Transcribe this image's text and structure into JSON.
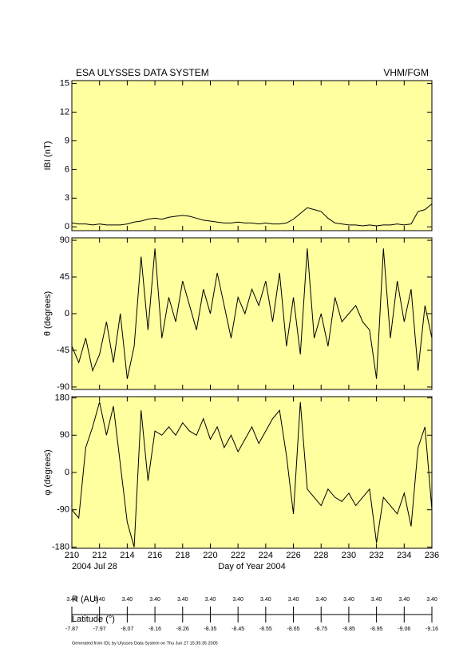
{
  "header": {
    "title": "ESA ULYSSES DATA SYSTEM",
    "instrument": "VHM/FGM"
  },
  "chart_data": [
    {
      "type": "line",
      "ylabel": "IBI (nT)",
      "color": "#000000",
      "background": "#ffffa0",
      "x": [
        210,
        210.5,
        211,
        211.5,
        212,
        212.5,
        213,
        213.5,
        214,
        214.5,
        215,
        215.5,
        216,
        216.5,
        217,
        217.5,
        218,
        218.5,
        219,
        219.5,
        220,
        220.5,
        221,
        221.5,
        222,
        222.5,
        223,
        223.5,
        224,
        224.5,
        225,
        225.5,
        226,
        226.5,
        227,
        227.5,
        228,
        228.5,
        229,
        229.5,
        230,
        230.5,
        231,
        231.5,
        232,
        232.5,
        233,
        233.5,
        234,
        234.5,
        235,
        235.5,
        236
      ],
      "values": [
        0.4,
        0.3,
        0.3,
        0.2,
        0.3,
        0.2,
        0.2,
        0.2,
        0.3,
        0.5,
        0.6,
        0.8,
        0.9,
        0.8,
        1.0,
        1.1,
        1.2,
        1.1,
        0.9,
        0.7,
        0.6,
        0.5,
        0.4,
        0.4,
        0.5,
        0.4,
        0.4,
        0.3,
        0.4,
        0.3,
        0.3,
        0.4,
        0.8,
        1.4,
        2.0,
        1.8,
        1.6,
        0.9,
        0.4,
        0.3,
        0.2,
        0.2,
        0.1,
        0.2,
        0.1,
        0.2,
        0.2,
        0.3,
        0.2,
        0.3,
        1.6,
        1.8,
        2.4
      ],
      "xlim": [
        210,
        236
      ],
      "xticks": [
        210,
        212,
        214,
        216,
        218,
        220,
        222,
        224,
        226,
        228,
        230,
        232,
        234,
        236
      ],
      "ylim": [
        -0.4,
        15.3
      ],
      "yticks": [
        0,
        3,
        6,
        9,
        12,
        15
      ]
    },
    {
      "type": "line",
      "ylabel": "θ (degrees)",
      "color": "#000000",
      "background": "#ffffa0",
      "x": [
        210,
        210.5,
        211,
        211.5,
        212,
        212.5,
        213,
        213.5,
        214,
        214.5,
        215,
        215.5,
        216,
        216.5,
        217,
        217.5,
        218,
        218.5,
        219,
        219.5,
        220,
        220.5,
        221,
        221.5,
        222,
        222.5,
        223,
        223.5,
        224,
        224.5,
        225,
        225.5,
        226,
        226.5,
        227,
        227.5,
        228,
        228.5,
        229,
        229.5,
        230,
        230.5,
        231,
        231.5,
        232,
        232.5,
        233,
        233.5,
        234,
        234.5,
        235,
        235.5,
        236
      ],
      "values": [
        -40,
        -60,
        -30,
        -70,
        -50,
        -10,
        -60,
        0,
        -80,
        -40,
        70,
        -20,
        80,
        -30,
        20,
        -10,
        40,
        10,
        -20,
        30,
        0,
        50,
        10,
        -30,
        20,
        0,
        30,
        10,
        40,
        -10,
        50,
        -40,
        20,
        -50,
        80,
        -30,
        0,
        -40,
        20,
        -10,
        0,
        10,
        -10,
        -20,
        -80,
        80,
        -30,
        40,
        -10,
        30,
        -70,
        10,
        -30
      ],
      "xlim": [
        210,
        236
      ],
      "xticks": [
        210,
        212,
        214,
        216,
        218,
        220,
        222,
        224,
        226,
        228,
        230,
        232,
        234,
        236
      ],
      "ylim": [
        -93,
        93
      ],
      "yticks": [
        -90,
        -45,
        0,
        45,
        90
      ]
    },
    {
      "type": "line",
      "ylabel": "φ (degrees)",
      "xlabel": "Day of Year 2004",
      "date_label": "2004 Jul 28",
      "color": "#000000",
      "background": "#ffffa0",
      "x": [
        210,
        210.5,
        211,
        211.5,
        212,
        212.5,
        213,
        213.5,
        214,
        214.5,
        215,
        215.5,
        216,
        216.5,
        217,
        217.5,
        218,
        218.5,
        219,
        219.5,
        220,
        220.5,
        221,
        221.5,
        222,
        222.5,
        223,
        223.5,
        224,
        224.5,
        225,
        225.5,
        226,
        226.5,
        227,
        227.5,
        228,
        228.5,
        229,
        229.5,
        230,
        230.5,
        231,
        231.5,
        232,
        232.5,
        233,
        233.5,
        234,
        234.5,
        235,
        235.5,
        236
      ],
      "values": [
        -90,
        -110,
        60,
        110,
        170,
        90,
        160,
        20,
        -120,
        -180,
        150,
        -20,
        100,
        90,
        110,
        90,
        120,
        100,
        90,
        130,
        80,
        110,
        60,
        90,
        50,
        80,
        110,
        70,
        100,
        130,
        150,
        40,
        -100,
        170,
        -40,
        -60,
        -80,
        -40,
        -60,
        -70,
        -50,
        -80,
        -60,
        -40,
        -170,
        -60,
        -80,
        -100,
        -50,
        -130,
        60,
        110,
        -90
      ],
      "xlim": [
        210,
        236
      ],
      "xticks": [
        210,
        212,
        214,
        216,
        218,
        220,
        222,
        224,
        226,
        228,
        230,
        232,
        234,
        236
      ],
      "ylim": [
        -183,
        183
      ],
      "yticks": [
        -180,
        -90,
        0,
        90,
        180
      ]
    }
  ],
  "ephemeris": {
    "r_label": "R (AU)",
    "lat_label": "Latitude (°)",
    "r_values": [
      "3.40",
      "3.40",
      "3.40",
      "3.40",
      "3.40",
      "3.40",
      "3.40",
      "3.40",
      "3.40",
      "3.40",
      "3.40",
      "3.40",
      "3.40",
      "3.40"
    ],
    "lat_values": [
      -7.87,
      -7.97,
      -8.07,
      -8.16,
      -8.26,
      -8.35,
      -8.45,
      -8.55,
      -8.65,
      -8.75,
      -8.85,
      -8.95,
      -9.06,
      -9.16
    ]
  },
  "footer": "Generated from IDL by Ulysses Data System on Thu Jun 27 15:35:35 2005"
}
